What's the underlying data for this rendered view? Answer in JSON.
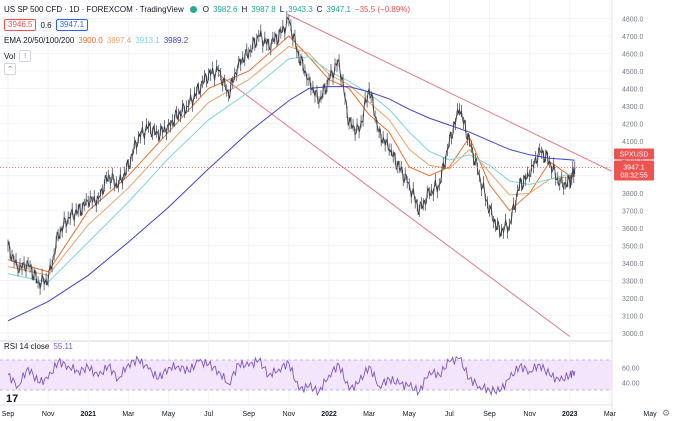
{
  "header": {
    "symbol_title": "US SP 500 CFD · 1D · FOREXCOM · TradingView",
    "sell_price": "3946.5",
    "spread": "0.6",
    "buy_price": "3947.1",
    "ohlc": {
      "o_label": "O",
      "o": "3982.6",
      "h_label": "H",
      "h": "3987.8",
      "l_label": "L",
      "l": "3943.3",
      "c_label": "C",
      "c": "3947.1",
      "change": "−35.5 (−0.89%)"
    }
  },
  "ema_legend": {
    "label": "EMA 20/50/100/200",
    "values": [
      "3900.0",
      "3897.4",
      "3913.1",
      "3989.2"
    ],
    "colors": [
      "#e8712d",
      "#e3a66b",
      "#7fd3dc",
      "#4343c8"
    ]
  },
  "vol_label": "Vol",
  "rsi_legend": {
    "label": "RSI 14 close",
    "value": "55.11"
  },
  "price_tag": {
    "symbol": "SPXUSD",
    "price": "3947.1",
    "countdown": "08:32:55"
  },
  "chart_data": {
    "type": "line",
    "title": "US SP 500 CFD · 1D · FOREXCOM · TradingView",
    "y_ticks": [
      3000,
      3100,
      3200,
      3300,
      3400,
      3500,
      3600,
      3700,
      3800,
      3900,
      4000,
      4100,
      4200,
      4300,
      4400,
      4500,
      4600,
      4700,
      4800
    ],
    "y_tick_labels": [
      "3000.0",
      "3100.0",
      "3200.0",
      "3300.0",
      "3400.0",
      "3500.0",
      "3600.0",
      "3700.0",
      "3800.0",
      "3900.0",
      "4000.0",
      "4100.0",
      "4200.0",
      "4300.0",
      "4400.0",
      "4500.0",
      "4600.0",
      "4700.0",
      "4800.0"
    ],
    "ylim": [
      2960,
      4860
    ],
    "x_tick_labels": [
      "Sep",
      "Nov",
      "2021",
      "Mar",
      "May",
      "Jul",
      "Sep",
      "Nov",
      "2022",
      "Mar",
      "May",
      "Jul",
      "Sep",
      "Nov",
      "2023",
      "Mar",
      "May"
    ],
    "x_tick_months": [
      0,
      2,
      4,
      6,
      8,
      10,
      12,
      14,
      16,
      18,
      20,
      22,
      24,
      26,
      28,
      30,
      32
    ],
    "x_month_range": [
      0,
      32
    ],
    "price_points": [
      [
        0,
        3500
      ],
      [
        0.5,
        3360
      ],
      [
        1,
        3400
      ],
      [
        1.5,
        3290
      ],
      [
        2,
        3300
      ],
      [
        2.5,
        3560
      ],
      [
        3,
        3660
      ],
      [
        3.5,
        3700
      ],
      [
        4,
        3750
      ],
      [
        4.5,
        3770
      ],
      [
        5,
        3900
      ],
      [
        5.5,
        3840
      ],
      [
        6,
        3960
      ],
      [
        6.5,
        4120
      ],
      [
        7,
        4180
      ],
      [
        7.5,
        4130
      ],
      [
        8,
        4190
      ],
      [
        8.5,
        4250
      ],
      [
        9,
        4300
      ],
      [
        9.5,
        4400
      ],
      [
        10,
        4480
      ],
      [
        10.5,
        4500
      ],
      [
        11,
        4360
      ],
      [
        11.5,
        4550
      ],
      [
        12,
        4600
      ],
      [
        12.5,
        4700
      ],
      [
        13,
        4650
      ],
      [
        13.5,
        4700
      ],
      [
        14,
        4790
      ],
      [
        14.5,
        4580
      ],
      [
        15,
        4450
      ],
      [
        15.5,
        4320
      ],
      [
        16,
        4450
      ],
      [
        16.5,
        4560
      ],
      [
        17,
        4200
      ],
      [
        17.5,
        4150
      ],
      [
        18,
        4400
      ],
      [
        18.5,
        4150
      ],
      [
        19,
        4050
      ],
      [
        19.5,
        3950
      ],
      [
        20,
        3850
      ],
      [
        20.5,
        3700
      ],
      [
        21,
        3800
      ],
      [
        21.5,
        3850
      ],
      [
        22,
        4100
      ],
      [
        22.5,
        4280
      ],
      [
        23,
        4100
      ],
      [
        23.5,
        3900
      ],
      [
        24,
        3700
      ],
      [
        24.5,
        3580
      ],
      [
        25,
        3620
      ],
      [
        25.5,
        3850
      ],
      [
        26,
        3900
      ],
      [
        26.5,
        4050
      ],
      [
        27,
        3980
      ],
      [
        27.5,
        3850
      ],
      [
        28,
        3860
      ],
      [
        28.25,
        3947.1
      ]
    ],
    "series": [
      {
        "name": "EMA 20",
        "value": 3900.0,
        "points": [
          [
            0,
            3420
          ],
          [
            2,
            3350
          ],
          [
            4,
            3700
          ],
          [
            6,
            3900
          ],
          [
            8,
            4150
          ],
          [
            10,
            4400
          ],
          [
            12,
            4500
          ],
          [
            14,
            4700
          ],
          [
            15,
            4580
          ],
          [
            16,
            4450
          ],
          [
            17,
            4400
          ],
          [
            18,
            4250
          ],
          [
            19,
            4150
          ],
          [
            20,
            3950
          ],
          [
            21,
            3900
          ],
          [
            22,
            3950
          ],
          [
            23,
            4120
          ],
          [
            24,
            3850
          ],
          [
            25,
            3700
          ],
          [
            26,
            3800
          ],
          [
            27,
            3980
          ],
          [
            28,
            3900
          ],
          [
            28.25,
            3900
          ]
        ]
      },
      {
        "name": "EMA 50",
        "value": 3897.4,
        "points": [
          [
            0,
            3380
          ],
          [
            2,
            3330
          ],
          [
            4,
            3620
          ],
          [
            6,
            3830
          ],
          [
            8,
            4080
          ],
          [
            10,
            4320
          ],
          [
            12,
            4450
          ],
          [
            14,
            4640
          ],
          [
            15,
            4600
          ],
          [
            16,
            4480
          ],
          [
            17,
            4420
          ],
          [
            18,
            4320
          ],
          [
            19,
            4220
          ],
          [
            20,
            4050
          ],
          [
            21,
            3960
          ],
          [
            22,
            3940
          ],
          [
            23,
            4050
          ],
          [
            24,
            3920
          ],
          [
            25,
            3790
          ],
          [
            26,
            3800
          ],
          [
            27,
            3880
          ],
          [
            28,
            3895
          ],
          [
            28.25,
            3897.4
          ]
        ]
      },
      {
        "name": "EMA 100",
        "value": 3913.1,
        "points": [
          [
            0,
            3340
          ],
          [
            2,
            3290
          ],
          [
            4,
            3520
          ],
          [
            6,
            3750
          ],
          [
            8,
            4000
          ],
          [
            10,
            4220
          ],
          [
            12,
            4380
          ],
          [
            14,
            4570
          ],
          [
            15,
            4580
          ],
          [
            16,
            4500
          ],
          [
            17,
            4440
          ],
          [
            18,
            4370
          ],
          [
            19,
            4280
          ],
          [
            20,
            4150
          ],
          [
            21,
            4040
          ],
          [
            22,
            3990
          ],
          [
            23,
            4020
          ],
          [
            24,
            3960
          ],
          [
            25,
            3870
          ],
          [
            26,
            3850
          ],
          [
            27,
            3880
          ],
          [
            28,
            3910
          ],
          [
            28.25,
            3913.1
          ]
        ]
      },
      {
        "name": "EMA 200",
        "value": 3989.2,
        "points": [
          [
            0,
            3070
          ],
          [
            2,
            3180
          ],
          [
            4,
            3330
          ],
          [
            6,
            3520
          ],
          [
            8,
            3720
          ],
          [
            10,
            3940
          ],
          [
            12,
            4150
          ],
          [
            14,
            4330
          ],
          [
            15,
            4400
          ],
          [
            16,
            4410
          ],
          [
            17,
            4410
          ],
          [
            18,
            4380
          ],
          [
            19,
            4340
          ],
          [
            20,
            4280
          ],
          [
            21,
            4230
          ],
          [
            22,
            4190
          ],
          [
            23,
            4150
          ],
          [
            24,
            4100
          ],
          [
            25,
            4050
          ],
          [
            26,
            4020
          ],
          [
            27,
            4000
          ],
          [
            28,
            3992
          ],
          [
            28.25,
            3989.2
          ]
        ]
      }
    ],
    "trendlines": [
      {
        "name": "upper",
        "points": [
          [
            14.0,
            4820
          ],
          [
            32.0,
            3820
          ]
        ],
        "color": "#e07b86"
      },
      {
        "name": "lower",
        "points": [
          [
            10.5,
            4480
          ],
          [
            28.0,
            2980
          ]
        ],
        "color": "#e07b86"
      }
    ],
    "rsi": {
      "ylim": [
        10,
        90
      ],
      "y_ticks": [
        40,
        60
      ],
      "y_tick_labels": [
        "40.00",
        "60.00"
      ],
      "band": [
        30,
        70
      ],
      "points": [
        [
          0,
          50
        ],
        [
          0.5,
          35
        ],
        [
          1,
          60
        ],
        [
          1.5,
          40
        ],
        [
          2,
          45
        ],
        [
          2.5,
          68
        ],
        [
          3,
          62
        ],
        [
          3.5,
          55
        ],
        [
          4,
          60
        ],
        [
          4.5,
          48
        ],
        [
          5,
          62
        ],
        [
          5.5,
          45
        ],
        [
          6,
          65
        ],
        [
          6.5,
          70
        ],
        [
          7,
          58
        ],
        [
          7.5,
          45
        ],
        [
          8,
          60
        ],
        [
          8.5,
          62
        ],
        [
          9,
          55
        ],
        [
          9.5,
          68
        ],
        [
          10,
          64
        ],
        [
          10.5,
          55
        ],
        [
          11,
          38
        ],
        [
          11.5,
          65
        ],
        [
          12,
          62
        ],
        [
          12.5,
          70
        ],
        [
          13,
          50
        ],
        [
          13.5,
          58
        ],
        [
          14,
          66
        ],
        [
          14.5,
          30
        ],
        [
          15,
          35
        ],
        [
          15.5,
          28
        ],
        [
          16,
          50
        ],
        [
          16.5,
          64
        ],
        [
          17,
          30
        ],
        [
          17.5,
          40
        ],
        [
          18,
          62
        ],
        [
          18.5,
          35
        ],
        [
          19,
          45
        ],
        [
          19.5,
          38
        ],
        [
          20,
          35
        ],
        [
          20.5,
          28
        ],
        [
          21,
          55
        ],
        [
          21.5,
          50
        ],
        [
          22,
          68
        ],
        [
          22.5,
          72
        ],
        [
          23,
          45
        ],
        [
          23.5,
          35
        ],
        [
          24,
          30
        ],
        [
          24.5,
          28
        ],
        [
          25,
          45
        ],
        [
          25.5,
          62
        ],
        [
          26,
          55
        ],
        [
          26.5,
          64
        ],
        [
          27,
          50
        ],
        [
          27.5,
          42
        ],
        [
          28,
          50
        ],
        [
          28.25,
          55.11
        ]
      ]
    }
  }
}
